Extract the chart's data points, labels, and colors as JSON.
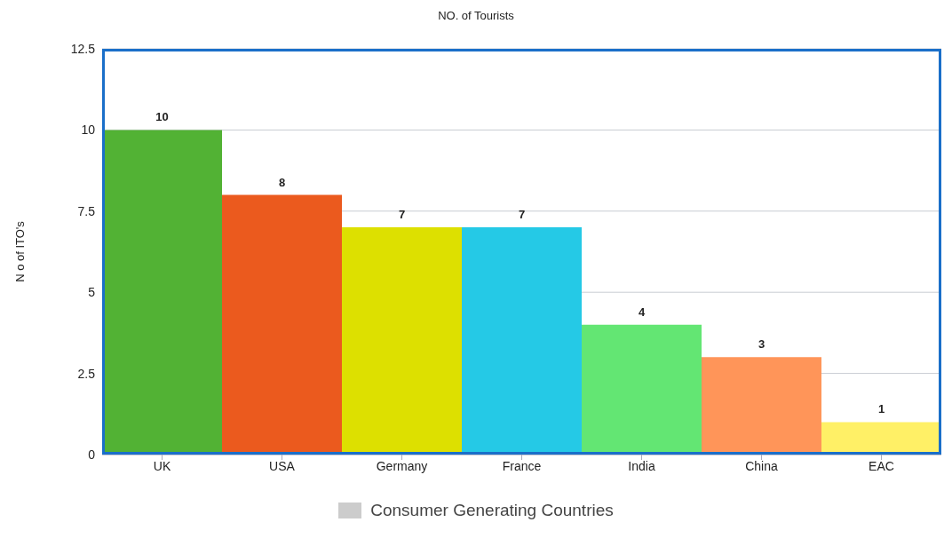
{
  "chart_data": {
    "type": "bar",
    "title": "NO. of Tourists",
    "ylabel": "N o of ITO's",
    "categories": [
      "UK",
      "USA",
      "Germany",
      "France",
      "India",
      "China",
      "EAC"
    ],
    "series": [
      {
        "name": "Consumer Generating Countries",
        "color": "#cccccc",
        "colors": [
          "#52b234",
          "#eb5a1e",
          "#dde000",
          "#25c9e6",
          "#63e673",
          "#ff9559",
          "#fff066"
        ],
        "values": [
          10,
          8,
          7,
          7,
          4,
          3,
          1
        ]
      }
    ],
    "ylim": [
      0,
      12.5
    ],
    "yticks": [
      0,
      2.5,
      5,
      7.5,
      10,
      12.5
    ],
    "grid": "y",
    "data_labels": true,
    "legend": "bottom"
  }
}
